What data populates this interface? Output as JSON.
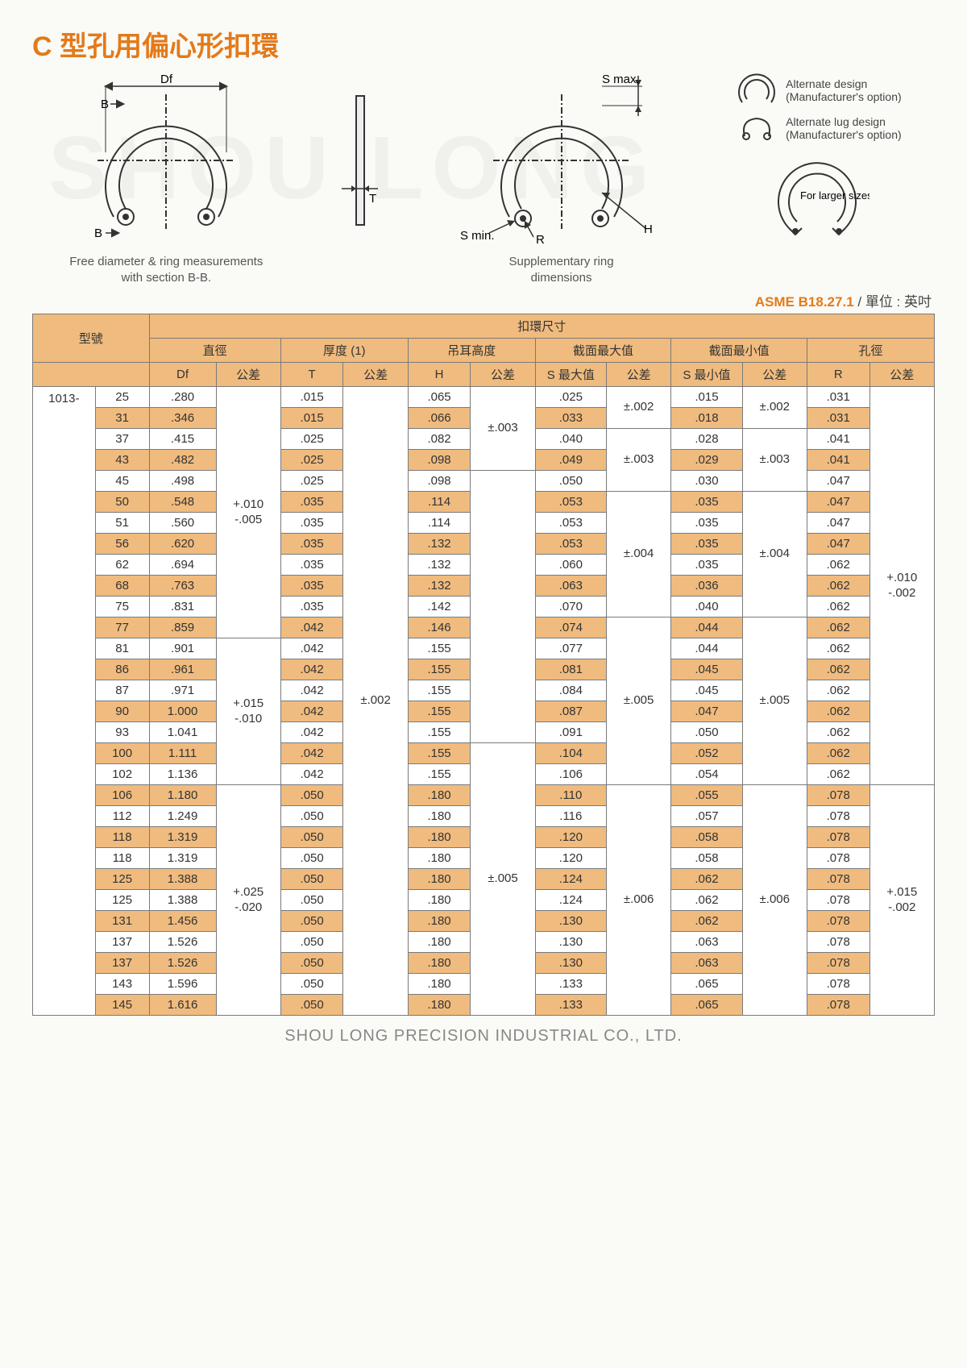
{
  "title": "C 型孔用偏心形扣環",
  "watermark": "SHOU LONG",
  "diagrams": {
    "left_caption": "Free diameter & ring measurements\nwith section B-B.",
    "mid_caption": "Supplementary ring\ndimensions",
    "labels": {
      "Df": "Df",
      "B": "B",
      "T": "T",
      "Smax": "S max.",
      "Smin": "S min.",
      "R": "R",
      "H": "H",
      "alt1": "Alternate design\n(Manufacturer's option)",
      "alt2": "Alternate lug design\n(Manufacturer's option)",
      "larger": "For larger sizes"
    }
  },
  "spec": {
    "asme": "ASME B18.27.1",
    "unit": " / 單位 : 英吋"
  },
  "headers": {
    "model": "型號",
    "ring_size": "扣環尺寸",
    "dia": "直徑",
    "thick": "厚度 (1)",
    "lug": "吊耳高度",
    "smax": "截面最大值",
    "smin": "截面最小值",
    "bore": "孔徑",
    "Df": "Df",
    "T": "T",
    "H": "H",
    "Smax": "S 最大值",
    "Smin": "S 最小值",
    "R": "R",
    "tol": "公差"
  },
  "series": "1013-",
  "rows": [
    {
      "n": "25",
      "Df": ".280",
      "T": ".015",
      "H": ".065",
      "Smax": ".025",
      "Smin": ".015",
      "R": ".031"
    },
    {
      "n": "31",
      "Df": ".346",
      "T": ".015",
      "H": ".066",
      "Smax": ".033",
      "Smin": ".018",
      "R": ".031"
    },
    {
      "n": "37",
      "Df": ".415",
      "T": ".025",
      "H": ".082",
      "Smax": ".040",
      "Smin": ".028",
      "R": ".041"
    },
    {
      "n": "43",
      "Df": ".482",
      "T": ".025",
      "H": ".098",
      "Smax": ".049",
      "Smin": ".029",
      "R": ".041"
    },
    {
      "n": "45",
      "Df": ".498",
      "T": ".025",
      "H": ".098",
      "Smax": ".050",
      "Smin": ".030",
      "R": ".047"
    },
    {
      "n": "50",
      "Df": ".548",
      "T": ".035",
      "H": ".114",
      "Smax": ".053",
      "Smin": ".035",
      "R": ".047"
    },
    {
      "n": "51",
      "Df": ".560",
      "T": ".035",
      "H": ".114",
      "Smax": ".053",
      "Smin": ".035",
      "R": ".047"
    },
    {
      "n": "56",
      "Df": ".620",
      "T": ".035",
      "H": ".132",
      "Smax": ".053",
      "Smin": ".035",
      "R": ".047"
    },
    {
      "n": "62",
      "Df": ".694",
      "T": ".035",
      "H": ".132",
      "Smax": ".060",
      "Smin": ".035",
      "R": ".062"
    },
    {
      "n": "68",
      "Df": ".763",
      "T": ".035",
      "H": ".132",
      "Smax": ".063",
      "Smin": ".036",
      "R": ".062"
    },
    {
      "n": "75",
      "Df": ".831",
      "T": ".035",
      "H": ".142",
      "Smax": ".070",
      "Smin": ".040",
      "R": ".062"
    },
    {
      "n": "77",
      "Df": ".859",
      "T": ".042",
      "H": ".146",
      "Smax": ".074",
      "Smin": ".044",
      "R": ".062"
    },
    {
      "n": "81",
      "Df": ".901",
      "T": ".042",
      "H": ".155",
      "Smax": ".077",
      "Smin": ".044",
      "R": ".062"
    },
    {
      "n": "86",
      "Df": ".961",
      "T": ".042",
      "H": ".155",
      "Smax": ".081",
      "Smin": ".045",
      "R": ".062"
    },
    {
      "n": "87",
      "Df": ".971",
      "T": ".042",
      "H": ".155",
      "Smax": ".084",
      "Smin": ".045",
      "R": ".062"
    },
    {
      "n": "90",
      "Df": "1.000",
      "T": ".042",
      "H": ".155",
      "Smax": ".087",
      "Smin": ".047",
      "R": ".062"
    },
    {
      "n": "93",
      "Df": "1.041",
      "T": ".042",
      "H": ".155",
      "Smax": ".091",
      "Smin": ".050",
      "R": ".062"
    },
    {
      "n": "100",
      "Df": "1.111",
      "T": ".042",
      "H": ".155",
      "Smax": ".104",
      "Smin": ".052",
      "R": ".062"
    },
    {
      "n": "102",
      "Df": "1.136",
      "T": ".042",
      "H": ".155",
      "Smax": ".106",
      "Smin": ".054",
      "R": ".062"
    },
    {
      "n": "106",
      "Df": "1.180",
      "T": ".050",
      "H": ".180",
      "Smax": ".110",
      "Smin": ".055",
      "R": ".078"
    },
    {
      "n": "112",
      "Df": "1.249",
      "T": ".050",
      "H": ".180",
      "Smax": ".116",
      "Smin": ".057",
      "R": ".078"
    },
    {
      "n": "118",
      "Df": "1.319",
      "T": ".050",
      "H": ".180",
      "Smax": ".120",
      "Smin": ".058",
      "R": ".078"
    },
    {
      "n": "118",
      "Df": "1.319",
      "T": ".050",
      "H": ".180",
      "Smax": ".120",
      "Smin": ".058",
      "R": ".078"
    },
    {
      "n": "125",
      "Df": "1.388",
      "T": ".050",
      "H": ".180",
      "Smax": ".124",
      "Smin": ".062",
      "R": ".078"
    },
    {
      "n": "125",
      "Df": "1.388",
      "T": ".050",
      "H": ".180",
      "Smax": ".124",
      "Smin": ".062",
      "R": ".078"
    },
    {
      "n": "131",
      "Df": "1.456",
      "T": ".050",
      "H": ".180",
      "Smax": ".130",
      "Smin": ".062",
      "R": ".078"
    },
    {
      "n": "137",
      "Df": "1.526",
      "T": ".050",
      "H": ".180",
      "Smax": ".130",
      "Smin": ".063",
      "R": ".078"
    },
    {
      "n": "137",
      "Df": "1.526",
      "T": ".050",
      "H": ".180",
      "Smax": ".130",
      "Smin": ".063",
      "R": ".078"
    },
    {
      "n": "143",
      "Df": "1.596",
      "T": ".050",
      "H": ".180",
      "Smax": ".133",
      "Smin": ".065",
      "R": ".078"
    },
    {
      "n": "145",
      "Df": "1.616",
      "T": ".050",
      "H": ".180",
      "Smax": ".133",
      "Smin": ".065",
      "R": ".078"
    }
  ],
  "tolerances": {
    "Df": [
      {
        "text": "+.010\n-.005",
        "span": 12
      },
      {
        "text": "+.015\n-.010",
        "span": 7
      },
      {
        "text": "+.025\n-.020",
        "span": 11
      }
    ],
    "T": [
      {
        "text": "±.002",
        "span": 30
      }
    ],
    "H": [
      {
        "text": "±.003",
        "span": 4
      },
      {
        "text": "",
        "span": 13,
        "blank": true
      },
      {
        "text": "±.005",
        "span": 13
      }
    ],
    "Smax": [
      {
        "text": "±.002",
        "span": 2
      },
      {
        "text": "±.003",
        "span": 3
      },
      {
        "text": "±.004",
        "span": 6
      },
      {
        "text": "±.005",
        "span": 8
      },
      {
        "text": "±.006",
        "span": 11
      }
    ],
    "Smin": [
      {
        "text": "±.002",
        "span": 2
      },
      {
        "text": "±.003",
        "span": 3
      },
      {
        "text": "±.004",
        "span": 6
      },
      {
        "text": "±.005",
        "span": 8
      },
      {
        "text": "±.006",
        "span": 11
      }
    ],
    "R": [
      {
        "text": "+.010\n-.002",
        "span": 19
      },
      {
        "text": "+.015\n-.002",
        "span": 11
      }
    ]
  },
  "footer": "SHOU LONG PRECISION INDUSTRIAL CO., LTD.",
  "colors": {
    "accent": "#e37a1a",
    "header_bg": "#f0bb7e",
    "border": "#7a7a7a",
    "page_bg": "#fafaf6"
  }
}
